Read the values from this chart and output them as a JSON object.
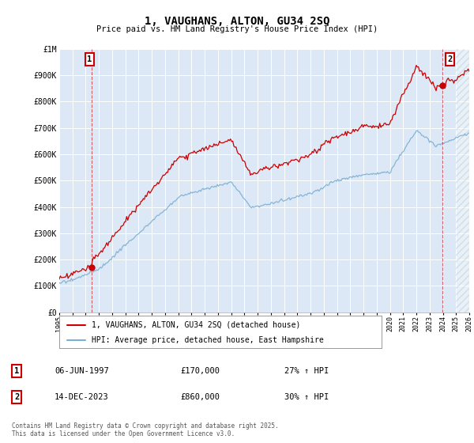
{
  "title": "1, VAUGHANS, ALTON, GU34 2SQ",
  "subtitle": "Price paid vs. HM Land Registry's House Price Index (HPI)",
  "red_label": "1, VAUGHANS, ALTON, GU34 2SQ (detached house)",
  "blue_label": "HPI: Average price, detached house, East Hampshire",
  "annotation1_box": "1",
  "annotation1_date": "06-JUN-1997",
  "annotation1_price": "£170,000",
  "annotation1_hpi": "27% ↑ HPI",
  "annotation2_box": "2",
  "annotation2_date": "14-DEC-2023",
  "annotation2_price": "£860,000",
  "annotation2_hpi": "30% ↑ HPI",
  "footer": "Contains HM Land Registry data © Crown copyright and database right 2025.\nThis data is licensed under the Open Government Licence v3.0.",
  "ylim": [
    0,
    1000000
  ],
  "xlim_start": 1995.0,
  "xlim_end": 2026.0,
  "background_color": "#dce8f5",
  "grid_color": "#ffffff",
  "red_color": "#cc0000",
  "blue_color": "#7bafd4",
  "sale1_x": 1997.44,
  "sale1_y": 170000,
  "sale2_x": 2023.95,
  "sale2_y": 860000
}
